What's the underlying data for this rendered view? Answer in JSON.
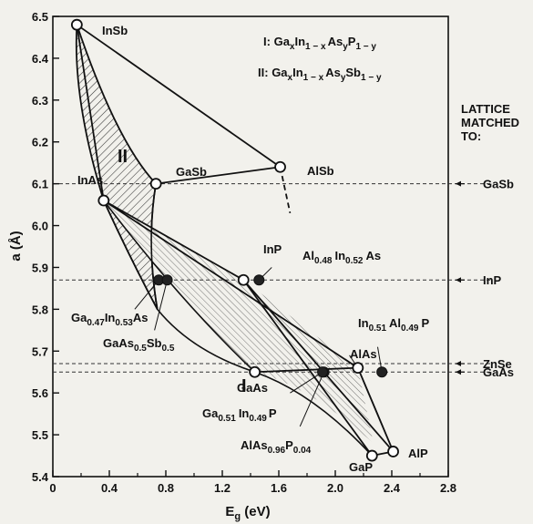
{
  "chart_data": {
    "type": "scatter",
    "title": "",
    "xlabel": "E",
    "xlabel_sub": "g",
    "xlabel_unit": " (eV)",
    "ylabel": "a (Å)",
    "xlim": [
      0,
      2.8
    ],
    "ylim": [
      5.4,
      6.5
    ],
    "x_ticks": [
      0,
      0.4,
      0.8,
      1.2,
      1.6,
      2.0,
      2.4,
      2.8
    ],
    "x_tick_labels": [
      "0",
      "0.4",
      "0.8",
      "1.2",
      "1.6",
      "2.0",
      "2.4",
      "2.8"
    ],
    "y_ticks": [
      5.4,
      5.5,
      5.6,
      5.7,
      5.8,
      5.9,
      6.0,
      6.1,
      6.2,
      6.3,
      6.4,
      6.5
    ],
    "y_tick_labels": [
      "5.4",
      "5.5",
      "5.6",
      "5.7",
      "5.8",
      "5.9",
      "6.0",
      "6.1",
      "6.2",
      "6.3",
      "6.4",
      "6.5"
    ],
    "binary_compounds": [
      {
        "name": "InSb",
        "x": 0.17,
        "y": 6.48
      },
      {
        "name": "InAs",
        "x": 0.36,
        "y": 6.06
      },
      {
        "name": "GaSb",
        "x": 0.73,
        "y": 6.1
      },
      {
        "name": "AlSb",
        "x": 1.61,
        "y": 6.14
      },
      {
        "name": "InP",
        "x": 1.35,
        "y": 5.87
      },
      {
        "name": "GaAs",
        "x": 1.43,
        "y": 5.65
      },
      {
        "name": "AlAs",
        "x": 2.16,
        "y": 5.66
      },
      {
        "name": "GaP",
        "x": 2.26,
        "y": 5.45
      },
      {
        "name": "AlP",
        "x": 2.41,
        "y": 5.46
      }
    ],
    "lattice_matched_alloys": [
      {
        "name": "Ga0.47In0.53As",
        "x": 0.75,
        "y": 5.87
      },
      {
        "name": "GaAs0.5Sb0.5",
        "x": 0.81,
        "y": 5.87
      },
      {
        "name": "Al0.48In0.52As",
        "x": 1.46,
        "y": 5.87
      },
      {
        "name": "AlAs0.96P0.04",
        "x": 1.92,
        "y": 5.65
      },
      {
        "name": "Ga0.51In0.49P",
        "x": 1.91,
        "y": 5.65
      },
      {
        "name": "In0.51Al0.49P",
        "x": 2.33,
        "y": 5.65
      }
    ],
    "lattice_matched_lines": [
      {
        "name": "GaSb",
        "y": 6.1
      },
      {
        "name": "InP",
        "y": 5.87
      },
      {
        "name": "ZnSe",
        "y": 5.67
      },
      {
        "name": "GaAs",
        "y": 5.65
      }
    ],
    "legend": {
      "system_I": {
        "roman": "I",
        "prefix": "Ga",
        "x": "x",
        "mid": "In",
        "onex": "1 − x",
        "as": "As",
        "y": "y",
        "last": "P",
        "oney": "1 − y"
      },
      "system_II": {
        "roman": "II",
        "prefix": "Ga",
        "x": "x",
        "mid": "In",
        "onex": "1 − x",
        "as": "As",
        "y": "y",
        "last": "Sb",
        "oney": "1 − y"
      },
      "region_I": "I",
      "region_II": "II",
      "lattice_header": [
        "LATTICE",
        "MATCHED",
        "TO:"
      ]
    },
    "annotations": {
      "InSb": "InSb",
      "InAs": "InAs",
      "GaSb": "GaSb",
      "AlSb": "AlSb",
      "InP": "InP",
      "GaAs": "GaAs",
      "AlAs": "AlAs",
      "GaP": "GaP",
      "AlP": "AlP",
      "AlInAs": {
        "a": "Al",
        "a_sub": "0.48",
        "b": "In",
        "b_sub": "0.52",
        "c": "As"
      },
      "GaInAs": {
        "a": "Ga",
        "a_sub": "0.47",
        "b": "In",
        "b_sub": "0.53",
        "c": "As"
      },
      "GaAsSb": {
        "a": "GaAs",
        "a_sub": "0.5",
        "b": "Sb",
        "b_sub": "0.5"
      },
      "InAlP": {
        "a": "In",
        "a_sub": "0.51",
        "b": "Al",
        "b_sub": "0.49",
        "c": "P"
      },
      "GaInP": {
        "a": "Ga",
        "a_sub": "0.51",
        "b": "In",
        "b_sub": "0.49",
        "c": "P"
      },
      "AlAsP": {
        "a": "AlAs",
        "a_sub": "0.96",
        "b": "P",
        "b_sub": "0.04"
      }
    }
  }
}
